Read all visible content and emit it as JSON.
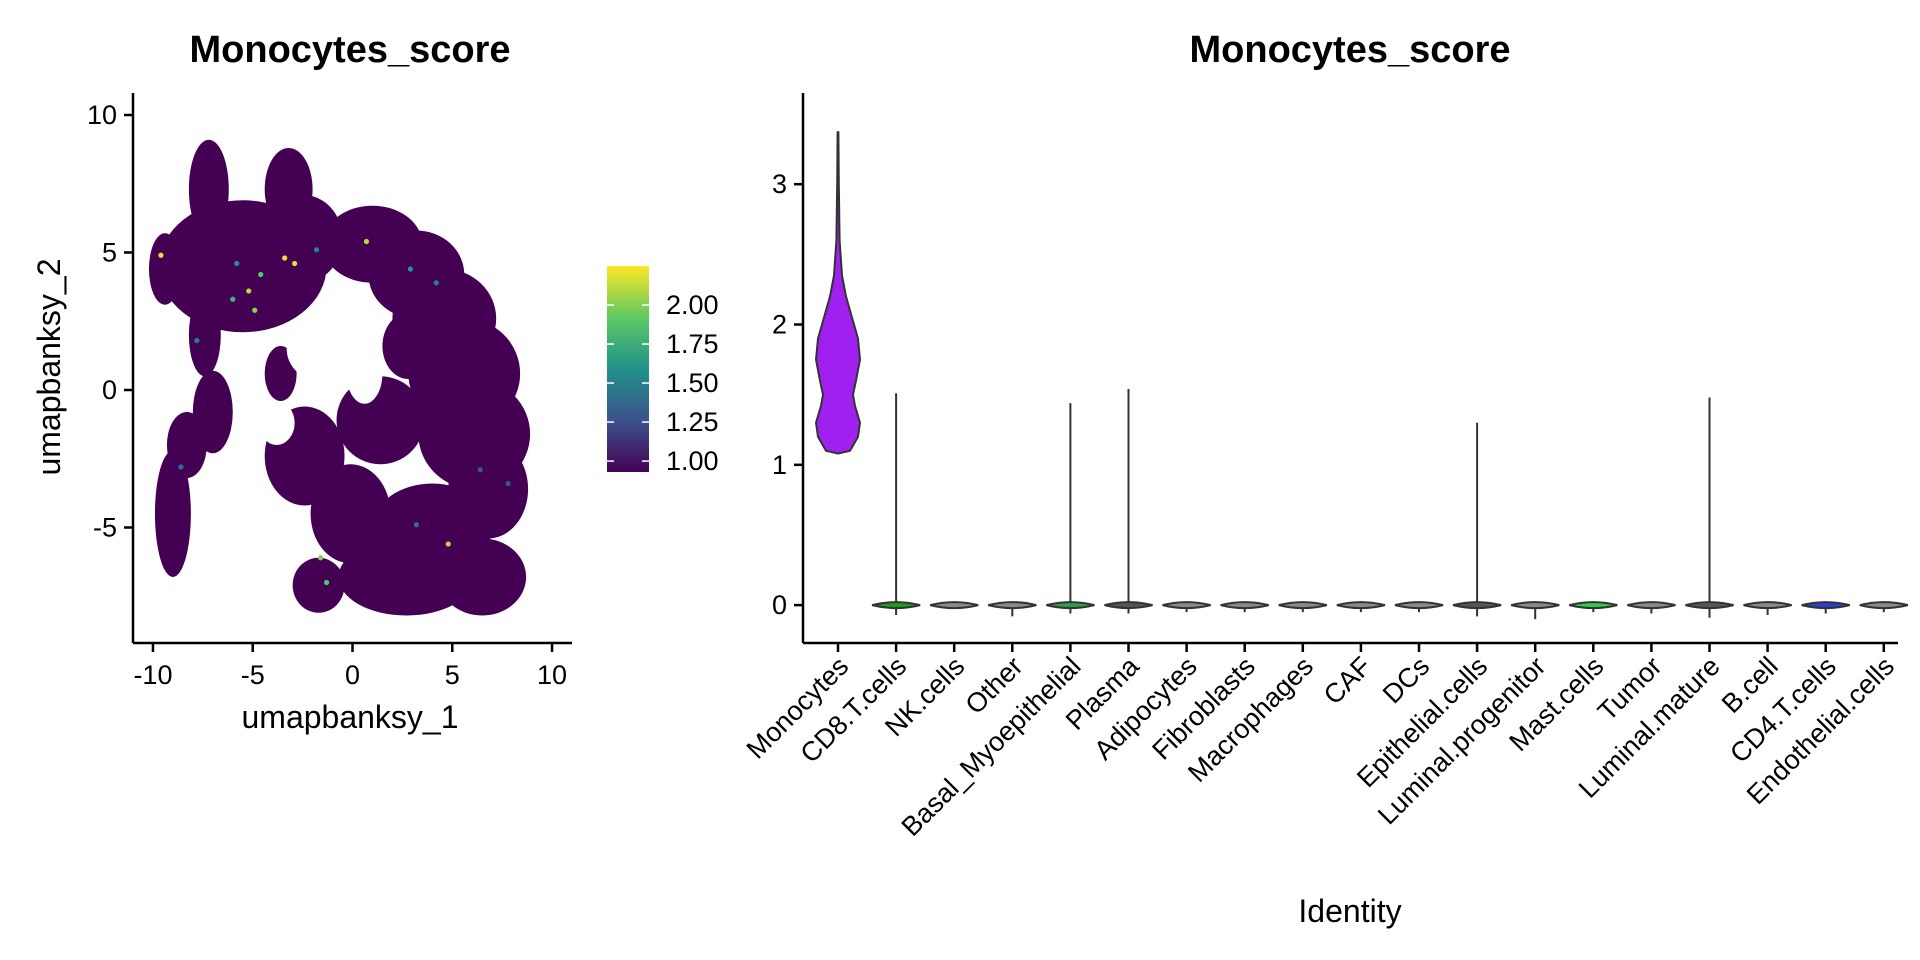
{
  "umap": {
    "title": "Monocytes_score",
    "xlabel": "umapbanksy_1",
    "ylabel": "umapbanksy_2",
    "xlim": [
      -11,
      11
    ],
    "ylim": [
      -9.2,
      10.8
    ],
    "xticks": [
      -10,
      -5,
      0,
      5,
      10
    ],
    "yticks": [
      -5,
      0,
      5,
      10
    ],
    "xtick_labels": [
      "-10",
      "-5",
      "0",
      "5",
      "10"
    ],
    "ytick_labels": [
      "-5",
      "0",
      "5",
      "10"
    ],
    "base_color": "#440154",
    "colorbar": {
      "ticks": [
        1.0,
        1.25,
        1.5,
        1.75,
        2.0
      ],
      "tick_labels": [
        "1.00",
        "1.25",
        "1.50",
        "1.75",
        "2.00"
      ],
      "range": [
        0.93,
        2.25
      ],
      "colors": [
        "#440154",
        "#3b528b",
        "#21918c",
        "#5ec962",
        "#fde725"
      ]
    }
  },
  "chart_data": [
    {
      "type": "scatter",
      "title": "Monocytes_score",
      "xlabel": "umapbanksy_1",
      "ylabel": "umapbanksy_2",
      "xlim": [
        -11,
        11
      ],
      "ylim": [
        -9.2,
        10.8
      ],
      "color_scale": "viridis",
      "color_range": [
        1.0,
        2.2
      ],
      "highlighted_points": [
        {
          "x": -5.2,
          "y": 3.6,
          "v": 2.1
        },
        {
          "x": -4.6,
          "y": 4.2,
          "v": 1.9
        },
        {
          "x": -3.4,
          "y": 4.8,
          "v": 2.2
        },
        {
          "x": -2.9,
          "y": 4.6,
          "v": 2.2
        },
        {
          "x": -6.0,
          "y": 3.3,
          "v": 1.8
        },
        {
          "x": -5.8,
          "y": 4.6,
          "v": 1.6
        },
        {
          "x": -4.9,
          "y": 2.9,
          "v": 2.0
        },
        {
          "x": 0.7,
          "y": 5.4,
          "v": 2.1
        },
        {
          "x": -7.8,
          "y": 1.8,
          "v": 1.5
        },
        {
          "x": -9.6,
          "y": 4.9,
          "v": 2.2
        },
        {
          "x": -1.8,
          "y": 5.1,
          "v": 1.5
        },
        {
          "x": 2.9,
          "y": 4.4,
          "v": 1.6
        },
        {
          "x": -1.6,
          "y": -6.1,
          "v": 2.0
        },
        {
          "x": -1.3,
          "y": -7.0,
          "v": 1.9
        },
        {
          "x": 4.8,
          "y": -5.6,
          "v": 2.1
        },
        {
          "x": 3.2,
          "y": -4.9,
          "v": 1.4
        },
        {
          "x": 6.4,
          "y": -2.9,
          "v": 1.3
        },
        {
          "x": 4.2,
          "y": 3.9,
          "v": 1.5
        },
        {
          "x": -8.6,
          "y": -2.8,
          "v": 1.4
        },
        {
          "x": 7.8,
          "y": -3.4,
          "v": 1.3
        }
      ]
    },
    {
      "type": "violin",
      "title": "Monocytes_score",
      "xlabel": "Identity",
      "ylabel": "",
      "ylim": [
        -0.27,
        3.65
      ],
      "yticks": [
        0,
        1,
        2,
        3
      ],
      "categories": [
        "Monocytes",
        "CD8.T.cells",
        "NK.cells",
        "Other",
        "Basal_Myoepithelial",
        "Plasma",
        "Adipocytes",
        "Fibroblasts",
        "Macrophages",
        "CAF",
        "DCs",
        "Epithelial.cells",
        "Luminal.progenitor",
        "Mast.cells",
        "Tumor",
        "Luminal.mature",
        "B.cell",
        "CD4.T.cells",
        "Endothelial.cells"
      ],
      "max_values": [
        3.37,
        1.51,
        0.0,
        0.0,
        1.44,
        1.54,
        0.0,
        0.0,
        0.0,
        0.0,
        0.0,
        1.3,
        0.0,
        0.0,
        0.0,
        1.48,
        0.0,
        0.0,
        0.0
      ],
      "min_values": [
        1.08,
        -0.07,
        0.0,
        -0.08,
        -0.06,
        -0.06,
        -0.05,
        -0.05,
        -0.05,
        -0.05,
        -0.05,
        -0.08,
        -0.1,
        -0.05,
        -0.06,
        -0.09,
        -0.07,
        -0.06,
        -0.05
      ],
      "colors": [
        "#a020f0",
        "#1a9e1a",
        "#8a8a8a",
        "#8a8a8a",
        "#2e9e4e",
        "#555555",
        "#8a8a8a",
        "#8a8a8a",
        "#8a8a8a",
        "#8a8a8a",
        "#8a8a8a",
        "#555555",
        "#8a8a8a",
        "#2ecc40",
        "#8a8a8a",
        "#555555",
        "#8a8a8a",
        "#2a3cd6",
        "#8a8a8a"
      ]
    }
  ]
}
